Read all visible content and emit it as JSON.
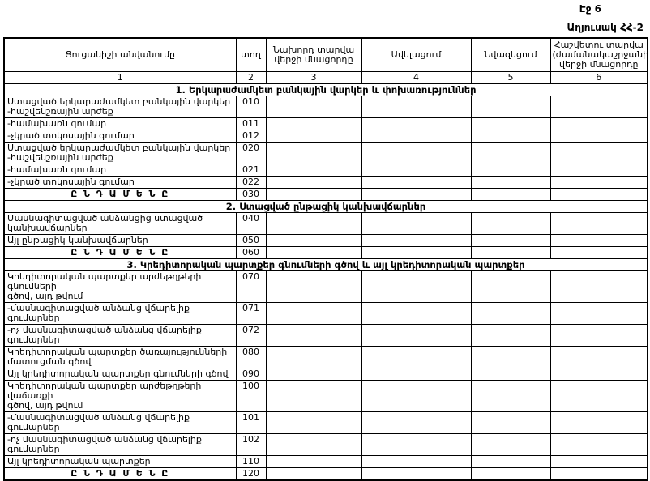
{
  "page": {
    "page_label": "Էջ 6",
    "table_label": "Աղյուսակ ՀՀ-2"
  },
  "table": {
    "columns": [
      {
        "label": "Ցուցանիշի անվանումը",
        "num": "1"
      },
      {
        "label": "տող",
        "num": "2"
      },
      {
        "label": "Նախորդ տարվա վերջի մնացորդը",
        "num": "3"
      },
      {
        "label": "Ավելացում",
        "num": "4"
      },
      {
        "label": "Նվազեցում",
        "num": "5"
      },
      {
        "label": "Հաշվետու տարվա (ժամանակաշրջանի) վերջի մնացորդը",
        "num": "6"
      }
    ],
    "rows": [
      {
        "type": "section",
        "label": "1. Երկարաժամկետ բանկային վարկեր և փոխառություններ"
      },
      {
        "type": "item",
        "code": "010",
        "label": "Ստացված երկարաժամկետ բանկային վարկեր\n-հաշվեկշռային արժեք"
      },
      {
        "type": "item",
        "code": "011",
        "label": "-համախառն գումար"
      },
      {
        "type": "item",
        "code": "012",
        "label": "-չկրած տոկոսային գումար"
      },
      {
        "type": "item",
        "code": "020",
        "label": "Ստացված երկարաժամկետ բանկային վարկեր\n-հաշվեկշռային արժեք"
      },
      {
        "type": "item",
        "code": "021",
        "label": "-համախառն գումար"
      },
      {
        "type": "item",
        "code": "022",
        "label": "-չկրած տոկոսային գումար"
      },
      {
        "type": "total",
        "code": "030",
        "label": "Ը Ն Դ Ա Մ Ե Ն Ը"
      },
      {
        "type": "section",
        "label": "2. Ստացված ընթացիկ կանխավճարներ"
      },
      {
        "type": "item",
        "code": "040",
        "label": "Մասնագիտացված անձանցից ստացված\nկանխավճարներ"
      },
      {
        "type": "item",
        "code": "050",
        "label": "Այլ ընթացիկ կանխավճարներ"
      },
      {
        "type": "total",
        "code": "060",
        "label": "Ը Ն Դ Ա Մ Ե Ն Ը"
      },
      {
        "type": "section",
        "label": "3. Կրեդիտորական պարտքեր գնումների գծով և այլ կրեդիտորական պարտքեր"
      },
      {
        "type": "item",
        "code": "070",
        "label": "Կրեդիտորական պարտքեր արժեթղթերի գնումների\nգծով, այդ թվում"
      },
      {
        "type": "item",
        "code": "071",
        "label": "-մասնագիտացված անձանց վճարելիք գումարներ"
      },
      {
        "type": "item",
        "code": "072",
        "label": "-ոչ մասնագիտացված անձանց վճարելիք գումարներ"
      },
      {
        "type": "item",
        "code": "080",
        "label": "Կրեդիտորական պարտքեր ծառայությունների\nմատուցման գծով"
      },
      {
        "type": "item",
        "code": "090",
        "label": "Այլ կրեդիտորական պարտքեր գնումների գծով"
      },
      {
        "type": "item",
        "code": "100",
        "label": "Կրեդիտորական պարտքեր արժեթղթերի վաճառքի\nգծով, այդ թվում"
      },
      {
        "type": "item",
        "code": "101",
        "label": "-մասնագիտացված անձանց վճարելիք գումարներ"
      },
      {
        "type": "item",
        "code": "102",
        "label": "-ոչ մասնագիտացված անձանց վճարելիք գումարներ"
      },
      {
        "type": "item",
        "code": "110",
        "label": "Այլ կրեդիտորական պարտքեր"
      },
      {
        "type": "total",
        "code": "120",
        "label": "Ը Ն Դ Ա Մ Ե Ն Ը"
      }
    ]
  }
}
